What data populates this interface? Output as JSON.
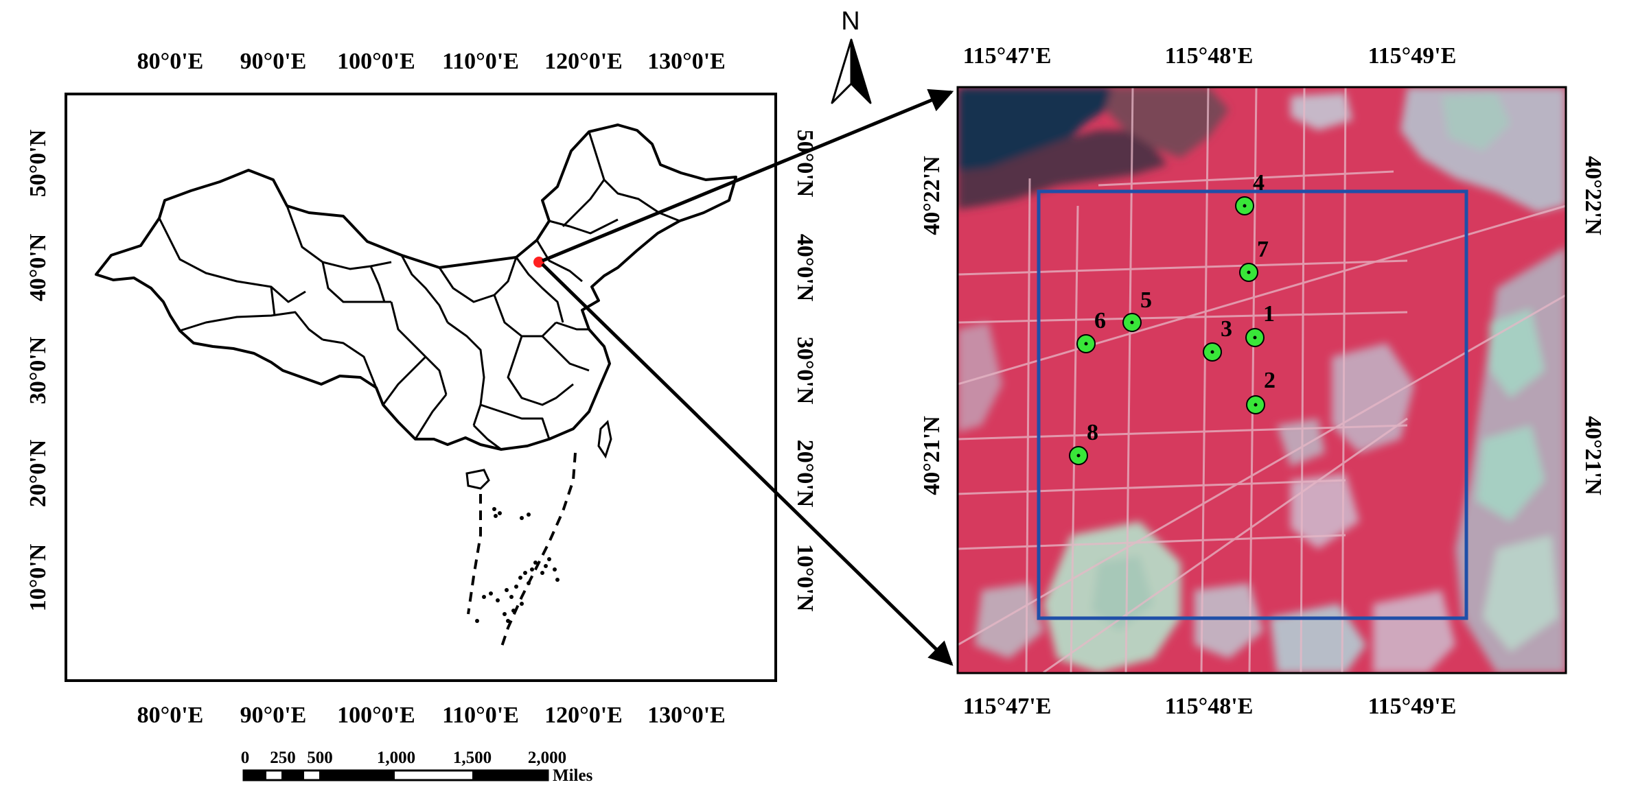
{
  "left_map": {
    "top_ticks": [
      "80°0'E",
      "90°0'E",
      "100°0'E",
      "110°0'E",
      "120°0'E",
      "130°0'E"
    ],
    "bottom_ticks": [
      "80°0'E",
      "90°0'E",
      "100°0'E",
      "110°0'E",
      "120°0'E",
      "130°0'E"
    ],
    "left_ticks": [
      "50°0'N",
      "40°0'N",
      "30°0'N",
      "20°0'N",
      "10°0'N"
    ],
    "right_ticks": [
      "50°0'N",
      "40°0'N",
      "30°0'N",
      "20°0'N",
      "10°0'N"
    ],
    "marker_color": "#ff2020"
  },
  "scale_bar": {
    "labels": [
      "0",
      "250",
      "500",
      "1,000",
      "1,500",
      "2,000"
    ],
    "unit": "Miles"
  },
  "north_arrow": {
    "label": "N"
  },
  "right_map": {
    "top_ticks": [
      "115°47'E",
      "115°48'E",
      "115°49'E"
    ],
    "bottom_ticks": [
      "115°47'E",
      "115°48'E",
      "115°49'E"
    ],
    "left_ticks": [
      "40°22'N",
      "40°21'N"
    ],
    "right_ticks": [
      "40°22'N",
      "40°21'N"
    ],
    "study_box_color": "#1f4fa8",
    "site_color": "#39e639",
    "sites": [
      {
        "id": "1",
        "label": "1"
      },
      {
        "id": "2",
        "label": "2"
      },
      {
        "id": "3",
        "label": "3"
      },
      {
        "id": "4",
        "label": "4"
      },
      {
        "id": "5",
        "label": "5"
      },
      {
        "id": "6",
        "label": "6"
      },
      {
        "id": "7",
        "label": "7"
      },
      {
        "id": "8",
        "label": "8"
      }
    ]
  }
}
